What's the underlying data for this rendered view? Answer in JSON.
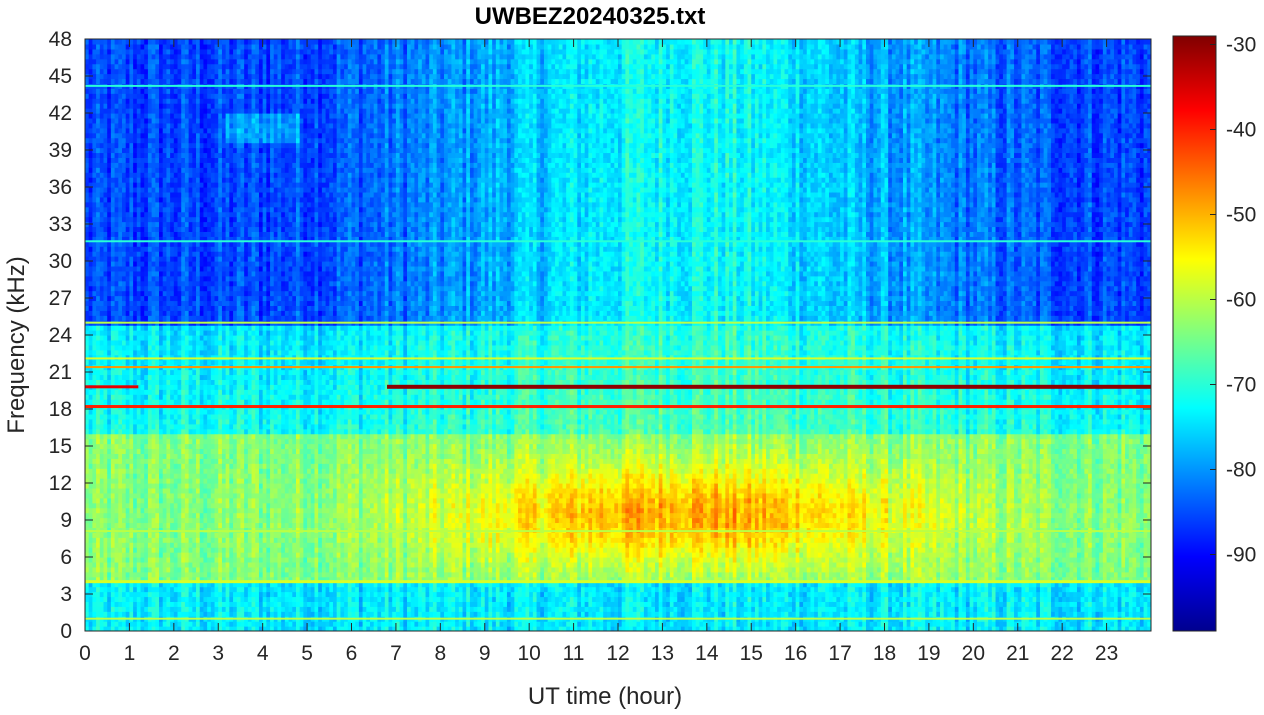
{
  "chart_data": {
    "type": "heatmap",
    "title": "UWBEZ20240325.txt",
    "xlabel": "UT time (hour)",
    "ylabel": "Frequency (kHz)",
    "xlim": [
      0,
      24
    ],
    "ylim": [
      0,
      48
    ],
    "x_ticks": [
      "0",
      "1",
      "2",
      "3",
      "4",
      "5",
      "6",
      "7",
      "8",
      "9",
      "10",
      "11",
      "12",
      "13",
      "14",
      "15",
      "16",
      "17",
      "18",
      "19",
      "20",
      "21",
      "22",
      "23"
    ],
    "y_ticks": [
      "0",
      "3",
      "6",
      "9",
      "12",
      "15",
      "18",
      "21",
      "24",
      "27",
      "30",
      "33",
      "36",
      "39",
      "42",
      "45",
      "48"
    ],
    "colorbar": {
      "colormap": "jet",
      "range": [
        -99,
        -29
      ],
      "ticks": [
        "-90",
        "-80",
        "-70",
        "-60",
        "-50",
        "-40",
        "-30"
      ]
    },
    "features": {
      "transmitter_lines_khz": [
        19.8,
        18.2,
        21.4,
        22.1,
        25.0,
        4.0,
        8.1,
        44.2,
        31.6
      ],
      "broadband_activity": {
        "time_hours": [
          8.5,
          19.0
        ],
        "freq_khz": [
          4,
          16
        ],
        "level_db": -47
      },
      "background_high_freq_db": -88
    }
  },
  "colors": {
    "text": "#262626",
    "axis": "#262626"
  }
}
